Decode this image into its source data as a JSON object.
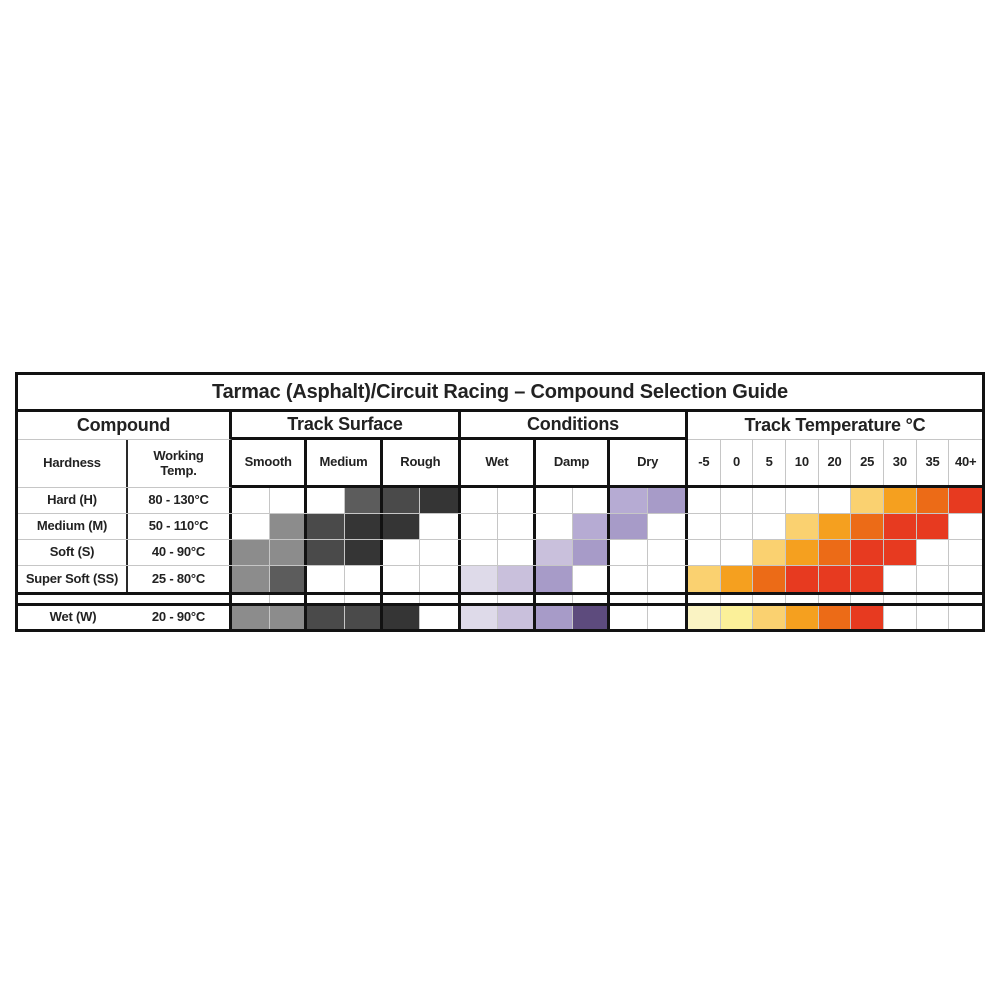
{
  "chart_data": {
    "type": "table",
    "title": "Tarmac (Asphalt)/Circuit Racing – Compound Selection Guide",
    "column_groups": [
      {
        "id": "compound",
        "label": "Compound",
        "columns": [
          "Hardness",
          "Working\nTemp."
        ]
      },
      {
        "id": "track_surface",
        "label": "Track Surface",
        "columns": [
          "Smooth",
          "Medium",
          "Rough"
        ],
        "subcells_per_column": 2
      },
      {
        "id": "conditions",
        "label": "Conditions",
        "columns": [
          "Wet",
          "Damp",
          "Dry"
        ],
        "subcells_per_column": 2
      },
      {
        "id": "track_temperature",
        "label": "Track Temperature °C",
        "columns": [
          "-5",
          "0",
          "5",
          "10",
          "20",
          "25",
          "30",
          "35",
          "40+"
        ]
      }
    ],
    "palette": {
      "g1": "#8c8c8c",
      "g2": "#5c5c5c",
      "g3": "#4a4a4a",
      "g4": "#353535",
      "p1": "#dedae9",
      "p2": "#c9c0dc",
      "p3": "#b6abd3",
      "p4": "#a79bc8",
      "p5": "#5d4b7d",
      "y1": "#faf3c3",
      "y2": "#fbf099",
      "o1": "#fad170",
      "o2": "#f5a01f",
      "o3": "#ec6b17",
      "o4": "#e73a20"
    },
    "rows": [
      {
        "label": "Hard (H)",
        "working_temp": "80 - 130°C",
        "surface": [
          "",
          "",
          "",
          "g2",
          "g3",
          "g4"
        ],
        "conditions": [
          "",
          "",
          "",
          "",
          "p3",
          "p4"
        ],
        "temperature": [
          "",
          "",
          "",
          "",
          "",
          "o1",
          "o2",
          "o3",
          "o4"
        ]
      },
      {
        "label": "Medium (M)",
        "working_temp": "50 - 110°C",
        "surface": [
          "",
          "g1",
          "g3",
          "g4",
          "g4",
          ""
        ],
        "conditions": [
          "",
          "",
          "",
          "p3",
          "p4",
          ""
        ],
        "temperature": [
          "",
          "",
          "",
          "o1",
          "o2",
          "o3",
          "o4",
          "o4",
          ""
        ]
      },
      {
        "label": "Soft (S)",
        "working_temp": "40 - 90°C",
        "surface": [
          "g1",
          "g1",
          "g3",
          "g4",
          "",
          ""
        ],
        "conditions": [
          "",
          "",
          "p2",
          "p4",
          "",
          ""
        ],
        "temperature": [
          "",
          "",
          "o1",
          "o2",
          "o3",
          "o4",
          "o4",
          "",
          ""
        ]
      },
      {
        "label": "Super Soft (SS)",
        "working_temp": "25 - 80°C",
        "surface": [
          "g1",
          "g2",
          "",
          "",
          "",
          ""
        ],
        "conditions": [
          "p1",
          "p2",
          "p4",
          "",
          "",
          ""
        ],
        "temperature": [
          "o1",
          "o2",
          "o3",
          "o4",
          "o4",
          "o4",
          "",
          "",
          ""
        ]
      }
    ],
    "wet_row": {
      "label": "Wet (W)",
      "working_temp": "20 - 90°C",
      "surface": [
        "g1",
        "g1",
        "g3",
        "g3",
        "g4",
        ""
      ],
      "conditions": [
        "p1",
        "p2",
        "p4",
        "p5",
        "",
        ""
      ],
      "temperature": [
        "y1",
        "y2",
        "o1",
        "o2",
        "o3",
        "o4",
        "",
        "",
        ""
      ]
    }
  }
}
